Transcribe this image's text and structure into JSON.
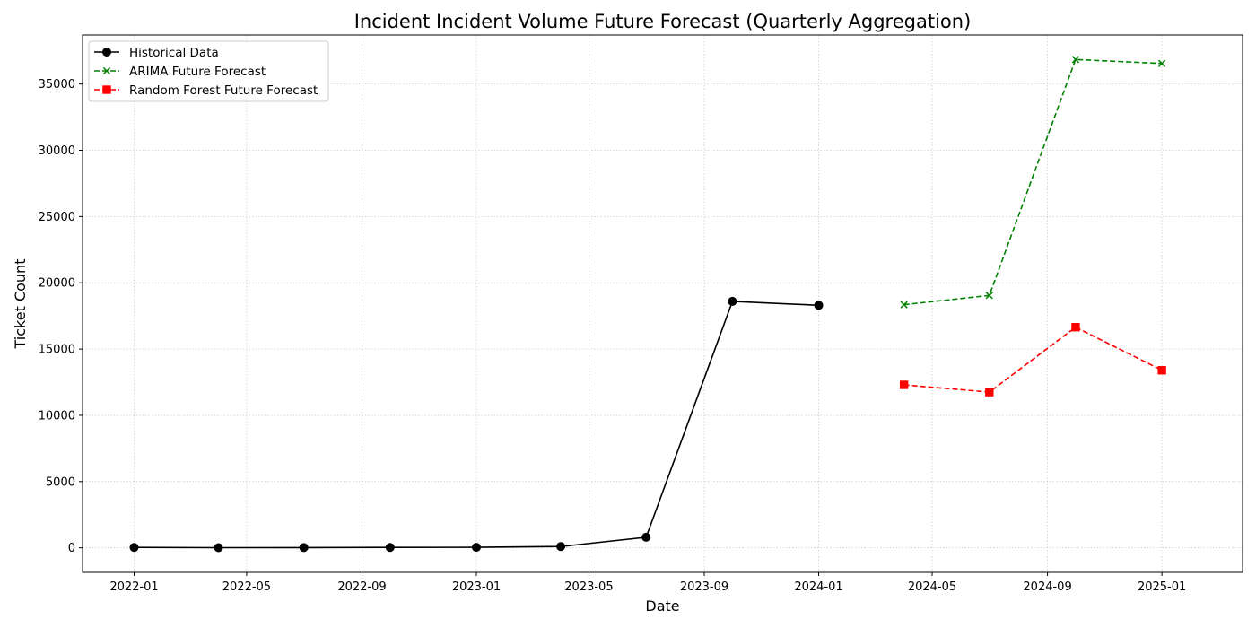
{
  "chart_data": {
    "type": "line",
    "title": "Incident Incident Volume Future Forecast (Quarterly Aggregation)",
    "xlabel": "Date",
    "ylabel": "Ticket Count",
    "x_ticks": [
      "2022-01",
      "2022-05",
      "2022-09",
      "2023-01",
      "2023-05",
      "2023-09",
      "2024-01",
      "2024-05",
      "2024-09",
      "2025-01"
    ],
    "y_ticks": [
      0,
      5000,
      10000,
      15000,
      20000,
      25000,
      30000,
      35000
    ],
    "xlim": [
      "2021-11-07",
      "2025-03-28"
    ],
    "ylim": [
      -1850,
      38700
    ],
    "grid": true,
    "legend_position": "top-left",
    "series": [
      {
        "name": "Historical Data",
        "color": "#000000",
        "line_style": "solid",
        "marker": "circle",
        "x": [
          "2022-01-01",
          "2022-04-01",
          "2022-07-01",
          "2022-10-01",
          "2023-01-01",
          "2023-04-01",
          "2023-07-01",
          "2023-10-01",
          "2024-01-01"
        ],
        "values": [
          30,
          10,
          20,
          30,
          40,
          100,
          800,
          18600,
          18300
        ]
      },
      {
        "name": "ARIMA Future Forecast",
        "color": "#008000",
        "line_style": "dashed",
        "marker": "x",
        "x": [
          "2024-04-01",
          "2024-07-01",
          "2024-10-01",
          "2025-01-01"
        ],
        "values": [
          18350,
          19050,
          36850,
          36550
        ]
      },
      {
        "name": "Random Forest Future Forecast",
        "color": "#ff0000",
        "line_style": "dashed",
        "marker": "square",
        "x": [
          "2024-04-01",
          "2024-07-01",
          "2024-10-01",
          "2025-01-01"
        ],
        "values": [
          12300,
          11750,
          16650,
          13400
        ]
      }
    ]
  }
}
